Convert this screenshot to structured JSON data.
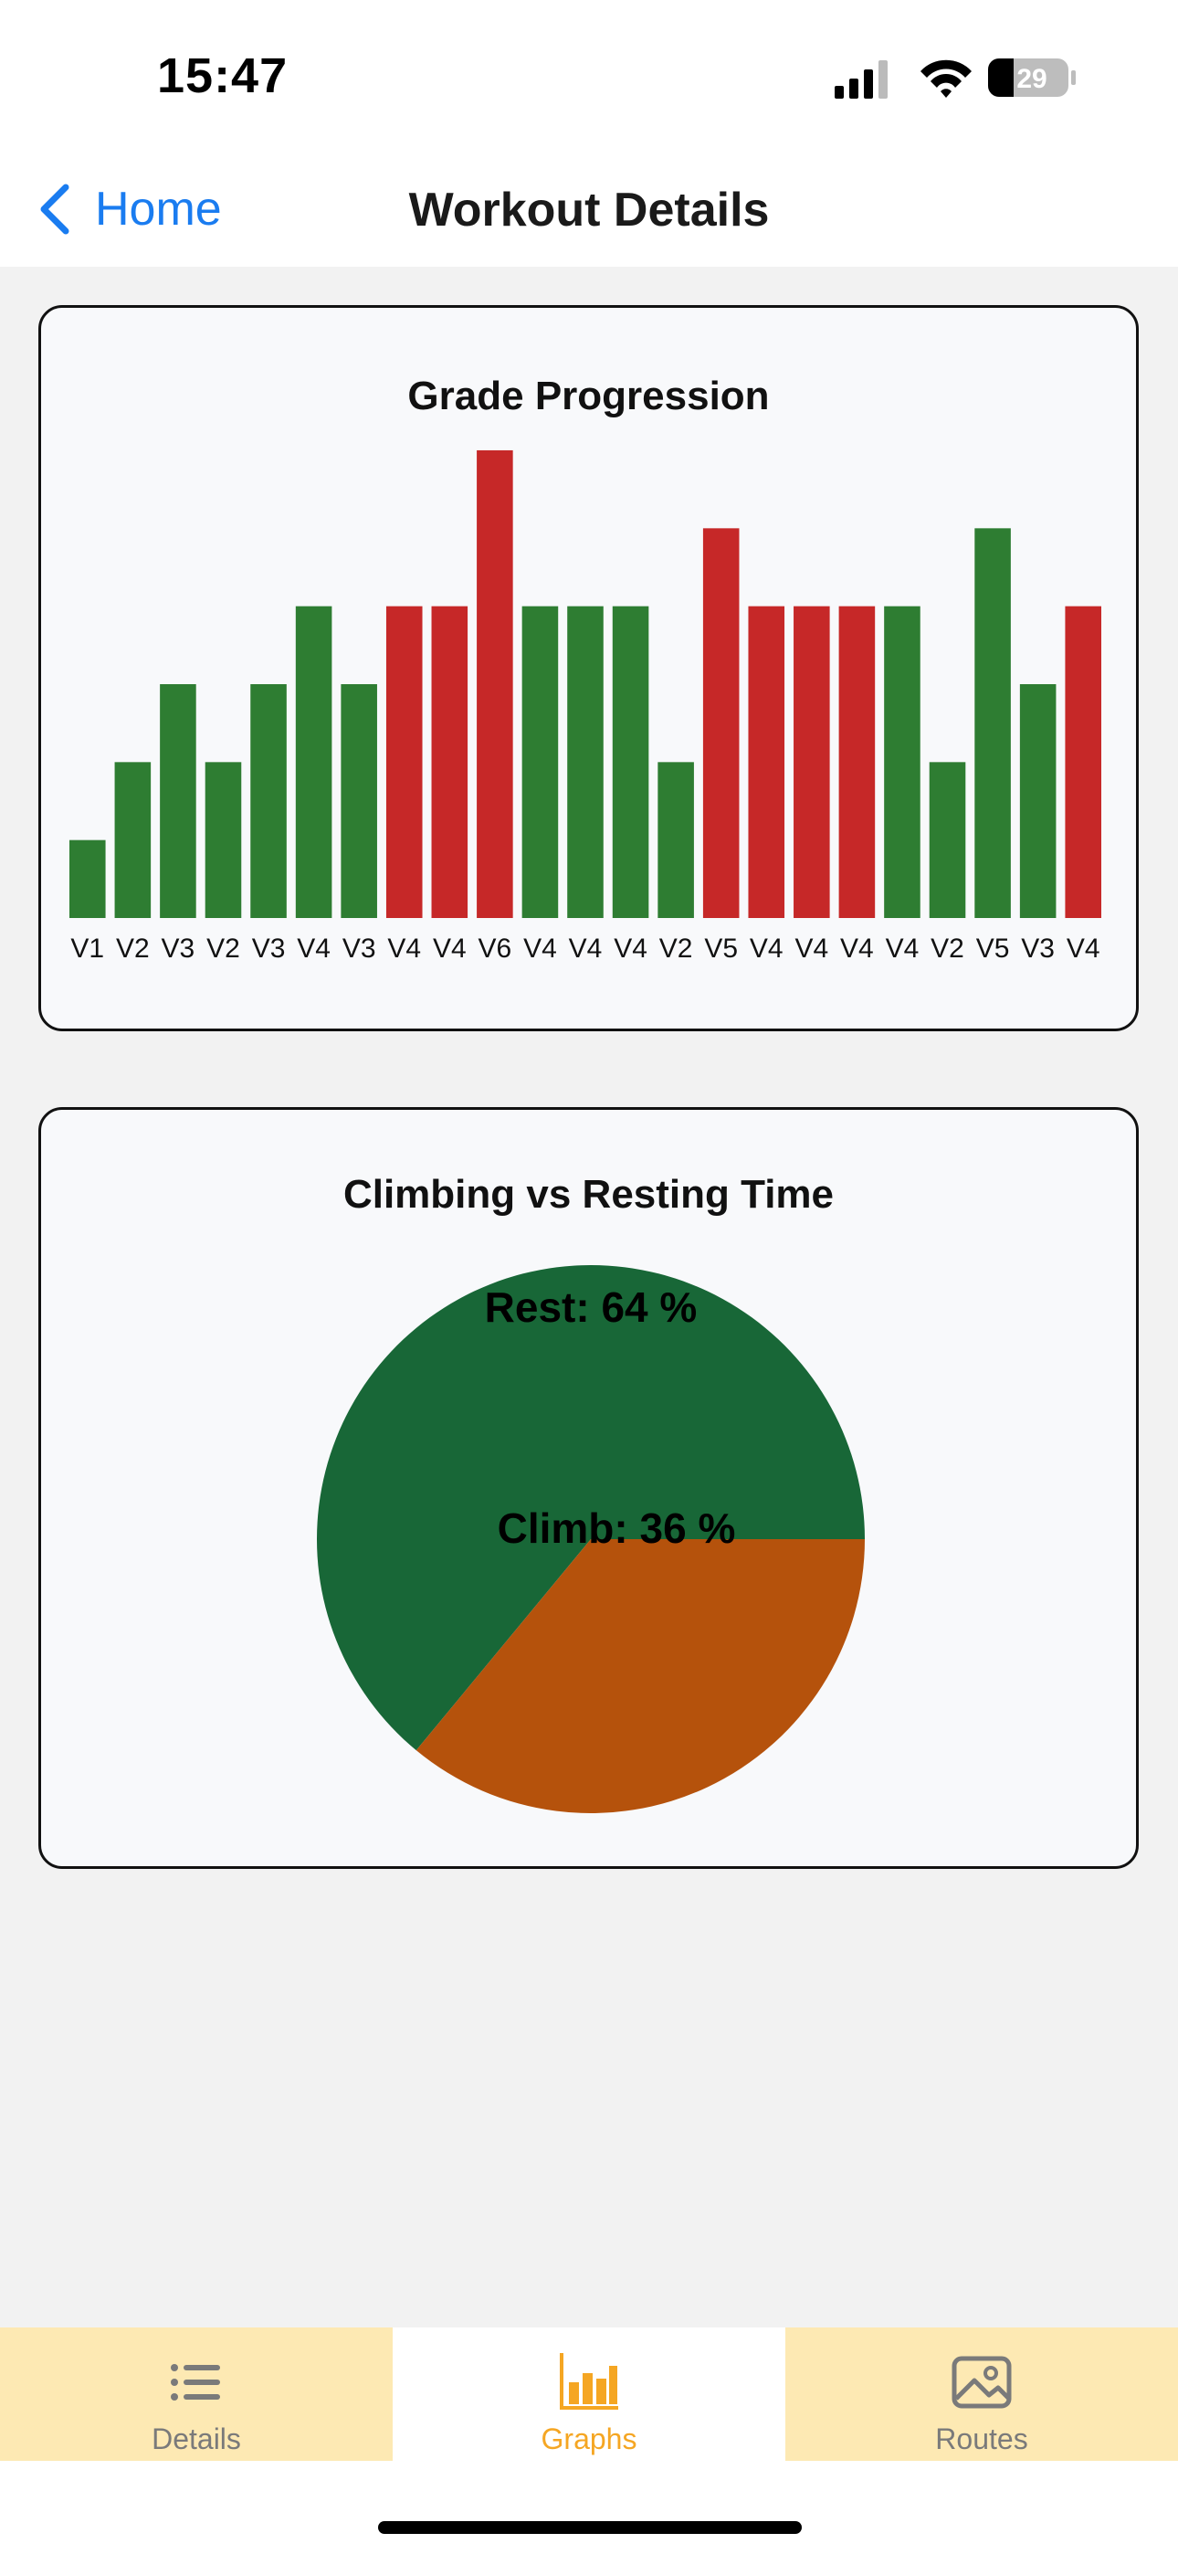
{
  "status_bar": {
    "time": "15:47",
    "battery_level": "29",
    "icons": [
      "cellular-signal-icon",
      "wifi-icon",
      "battery-icon"
    ]
  },
  "nav": {
    "back_label": "Home",
    "title": "Workout Details"
  },
  "colors": {
    "success": "#2e7d32",
    "fail": "#c62828",
    "rest": "#186737",
    "climb": "#b5520c",
    "accent": "#1a7cf0",
    "tab_active": "#f5a623",
    "tab_bg": "#fde9b3"
  },
  "chart_data": [
    {
      "type": "bar",
      "title": "Grade Progression",
      "categories": [
        "V1",
        "V2",
        "V3",
        "V2",
        "V3",
        "V4",
        "V3",
        "V4",
        "V4",
        "V6",
        "V4",
        "V4",
        "V4",
        "V2",
        "V5",
        "V4",
        "V4",
        "V4",
        "V4",
        "V2",
        "V5",
        "V3",
        "V4"
      ],
      "values": [
        1,
        2,
        3,
        2,
        3,
        4,
        3,
        4,
        4,
        6,
        4,
        4,
        4,
        2,
        5,
        4,
        4,
        4,
        4,
        2,
        5,
        3,
        4
      ],
      "status": [
        "send",
        "send",
        "send",
        "send",
        "send",
        "send",
        "send",
        "fail",
        "fail",
        "fail",
        "send",
        "send",
        "send",
        "send",
        "fail",
        "fail",
        "fail",
        "fail",
        "send",
        "send",
        "send",
        "send",
        "fail"
      ],
      "ylim": [
        0,
        6
      ],
      "grid": false
    },
    {
      "type": "pie",
      "title": "Climbing vs Resting Time",
      "slices": [
        {
          "label": "Rest:",
          "value": 64,
          "display": "64 %",
          "color": "#186737"
        },
        {
          "label": "Climb:",
          "value": 36,
          "display": "36 %",
          "color": "#b5520c"
        }
      ]
    }
  ],
  "tabs": [
    {
      "label": "Details",
      "icon": "list-icon",
      "active": false
    },
    {
      "label": "Graphs",
      "icon": "bar-chart-icon",
      "active": true
    },
    {
      "label": "Routes",
      "icon": "photo-icon",
      "active": false
    }
  ]
}
